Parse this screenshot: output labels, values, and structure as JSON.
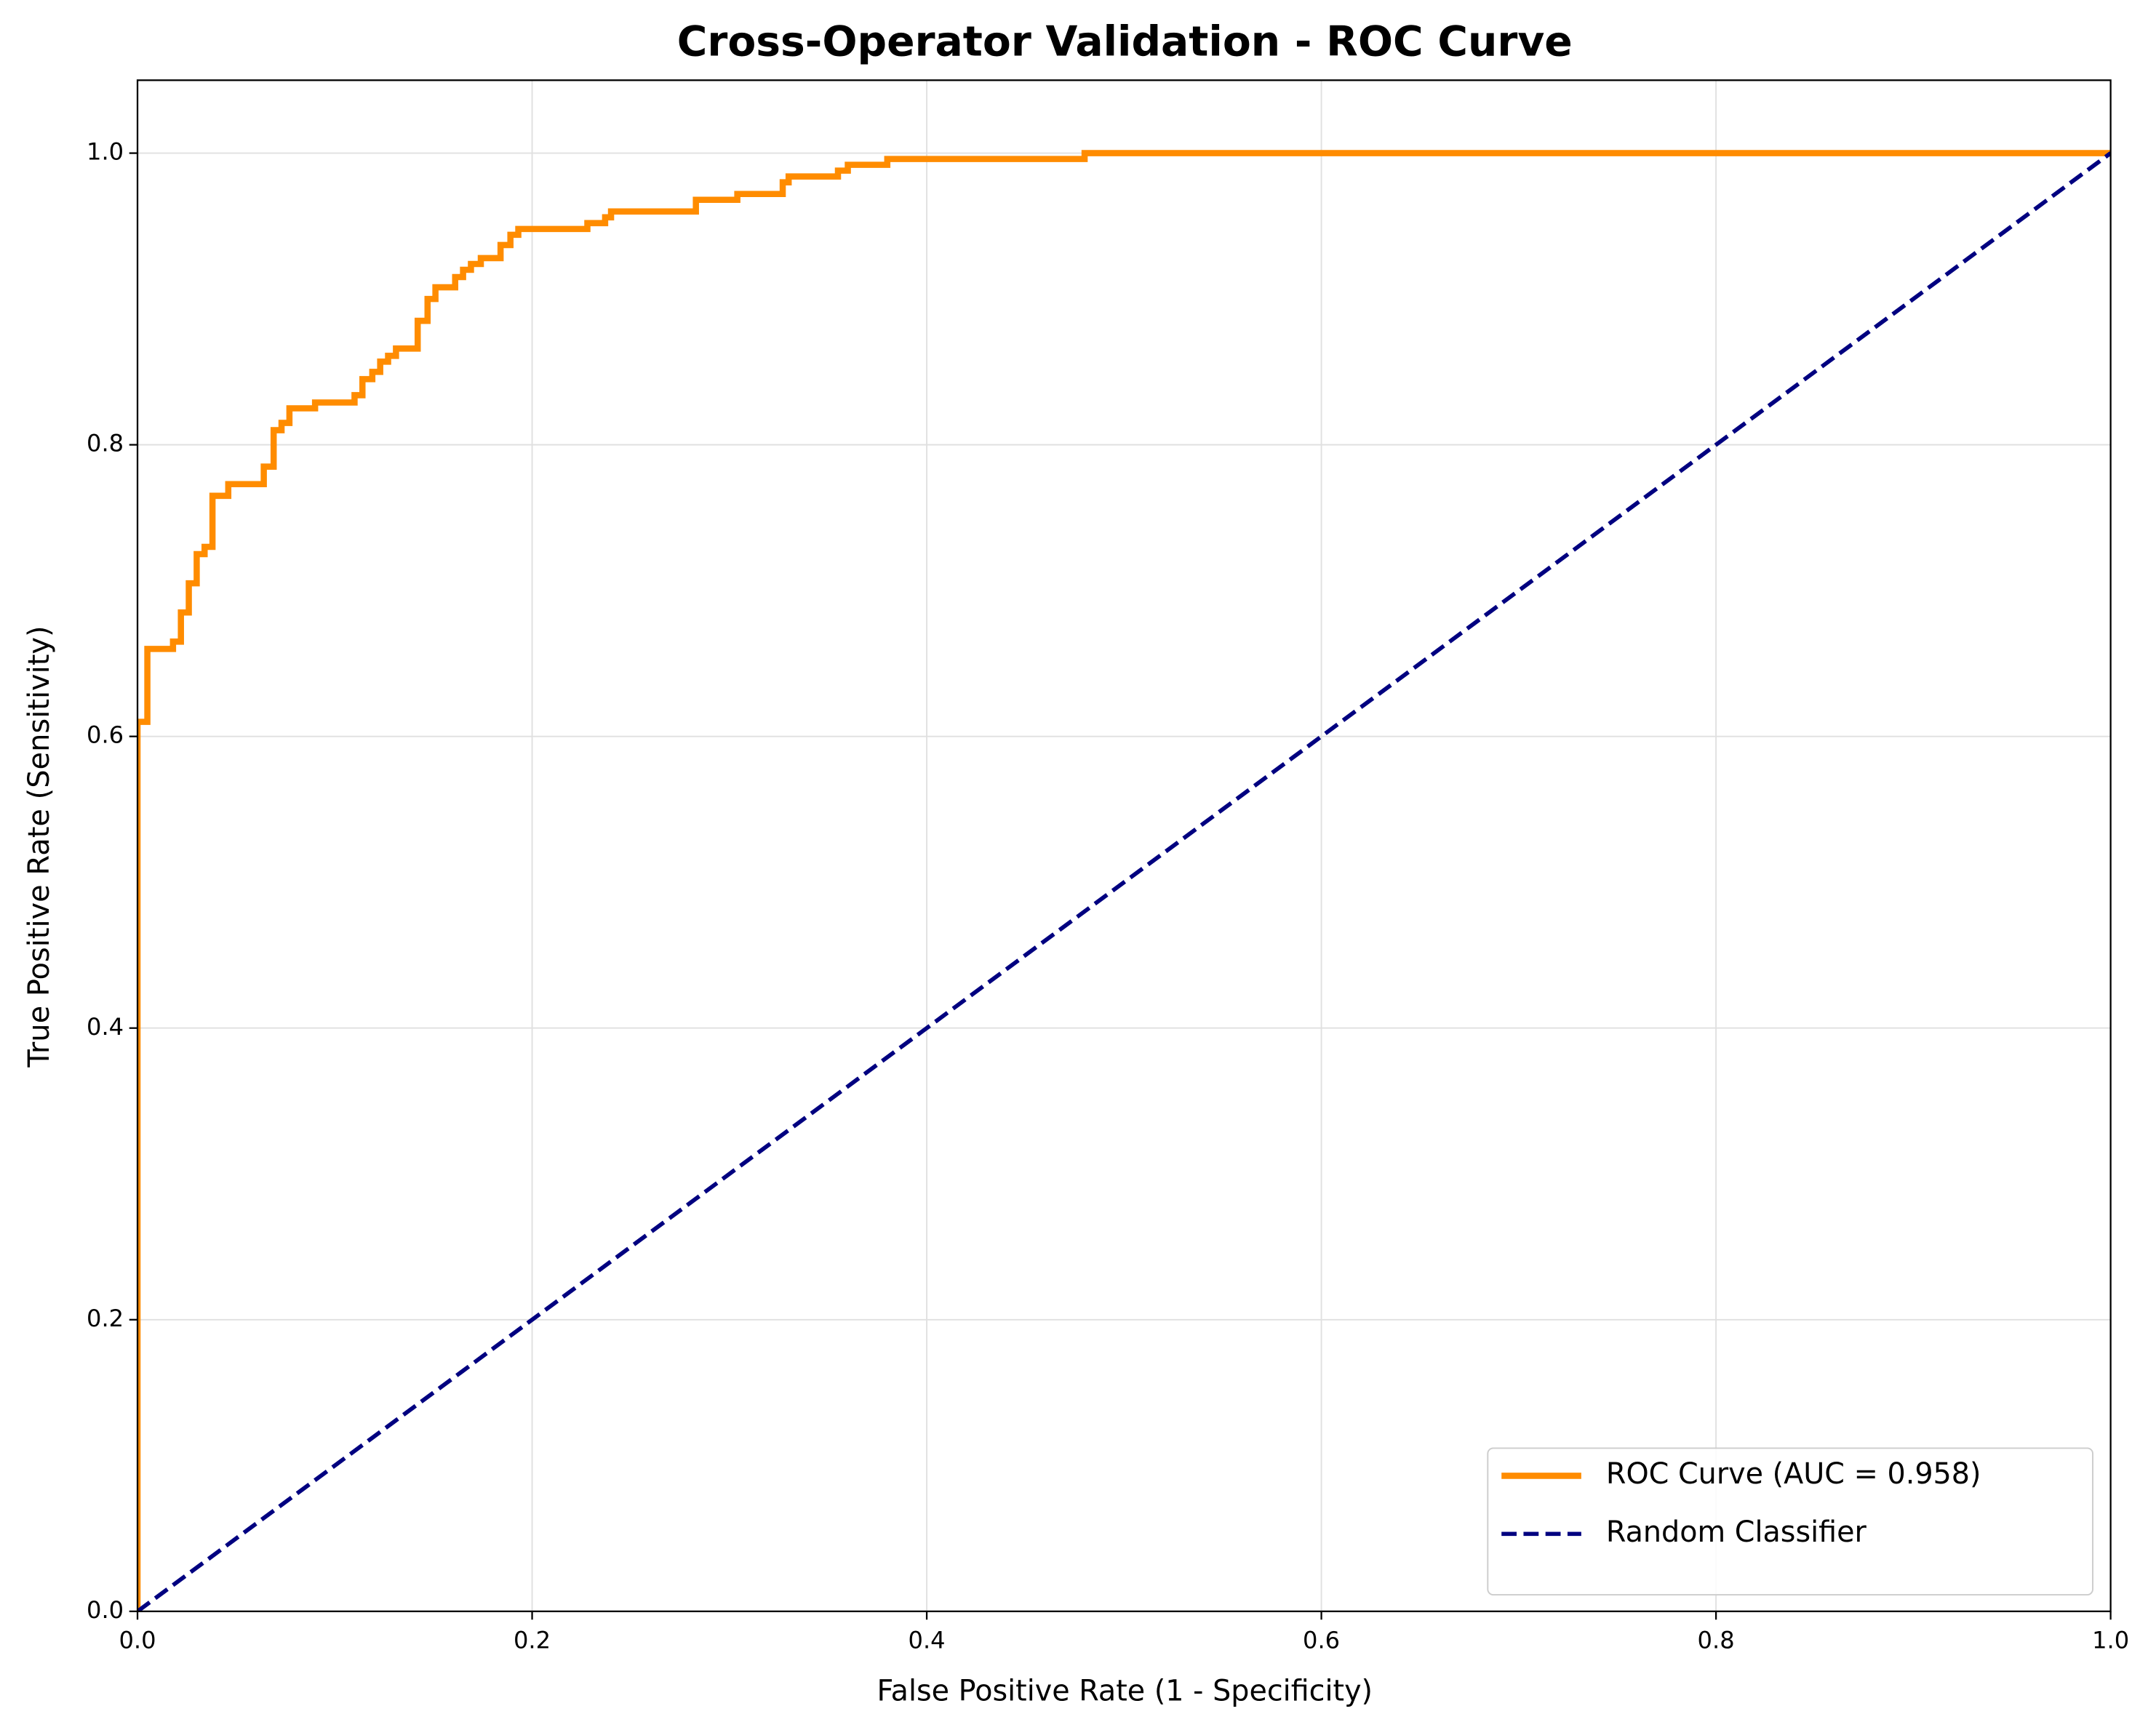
{
  "chart_data": {
    "type": "line",
    "title": "Cross-Operator Validation - ROC Curve",
    "xlabel": "False Positive Rate (1 - Specificity)",
    "ylabel": "True Positive Rate (Sensitivity)",
    "xlim": [
      0,
      1
    ],
    "ylim": [
      0,
      1.05
    ],
    "xticks": [
      {
        "value": 0,
        "label": "0.0"
      },
      0.2,
      0.4,
      0.6,
      0.8,
      {
        "value": 1,
        "label": "1.0"
      }
    ],
    "yticks": [
      {
        "value": 0,
        "label": "0.0"
      },
      0.2,
      0.4,
      0.6,
      0.8,
      {
        "value": 1,
        "label": "1.0"
      }
    ],
    "grid": true,
    "legend": "lower right",
    "series": [
      {
        "name": "ROC Curve (AUC = 0.958)",
        "color": "#ff8c00",
        "linestyle": "solid",
        "x": [
          0,
          0,
          0.005,
          0.005,
          0.018,
          0.018,
          0.022,
          0.022,
          0.026,
          0.026,
          0.03,
          0.03,
          0.034,
          0.034,
          0.038,
          0.038,
          0.046,
          0.046,
          0.064,
          0.064,
          0.069,
          0.069,
          0.073,
          0.073,
          0.077,
          0.077,
          0.09,
          0.09,
          0.11,
          0.11,
          0.114,
          0.114,
          0.119,
          0.119,
          0.123,
          0.123,
          0.127,
          0.127,
          0.131,
          0.131,
          0.142,
          0.142,
          0.147,
          0.147,
          0.151,
          0.151,
          0.161,
          0.161,
          0.165,
          0.165,
          0.169,
          0.169,
          0.174,
          0.174,
          0.184,
          0.184,
          0.189,
          0.189,
          0.193,
          0.193,
          0.228,
          0.228,
          0.237,
          0.237,
          0.24,
          0.24,
          0.283,
          0.283,
          0.304,
          0.304,
          0.327,
          0.327,
          0.33,
          0.33,
          0.355,
          0.355,
          0.36,
          0.36,
          0.38,
          0.38,
          0.48,
          0.48,
          1
        ],
        "y": [
          0,
          0.61,
          0.61,
          0.66,
          0.66,
          0.665,
          0.665,
          0.685,
          0.685,
          0.705,
          0.705,
          0.725,
          0.725,
          0.73,
          0.73,
          0.765,
          0.765,
          0.773,
          0.773,
          0.785,
          0.785,
          0.81,
          0.81,
          0.815,
          0.815,
          0.825,
          0.825,
          0.829,
          0.829,
          0.834,
          0.834,
          0.845,
          0.845,
          0.85,
          0.85,
          0.857,
          0.857,
          0.861,
          0.861,
          0.866,
          0.866,
          0.885,
          0.885,
          0.9,
          0.9,
          0.908,
          0.908,
          0.915,
          0.915,
          0.92,
          0.92,
          0.924,
          0.924,
          0.928,
          0.928,
          0.937,
          0.937,
          0.944,
          0.944,
          0.948,
          0.948,
          0.952,
          0.952,
          0.956,
          0.956,
          0.96,
          0.96,
          0.968,
          0.968,
          0.972,
          0.972,
          0.98,
          0.98,
          0.984,
          0.984,
          0.988,
          0.988,
          0.992,
          0.992,
          0.996,
          0.996,
          1,
          1
        ]
      },
      {
        "name": "Random Classifier",
        "color": "#000080",
        "linestyle": "dashed",
        "x": [
          0,
          1
        ],
        "y": [
          0,
          1
        ]
      }
    ]
  }
}
